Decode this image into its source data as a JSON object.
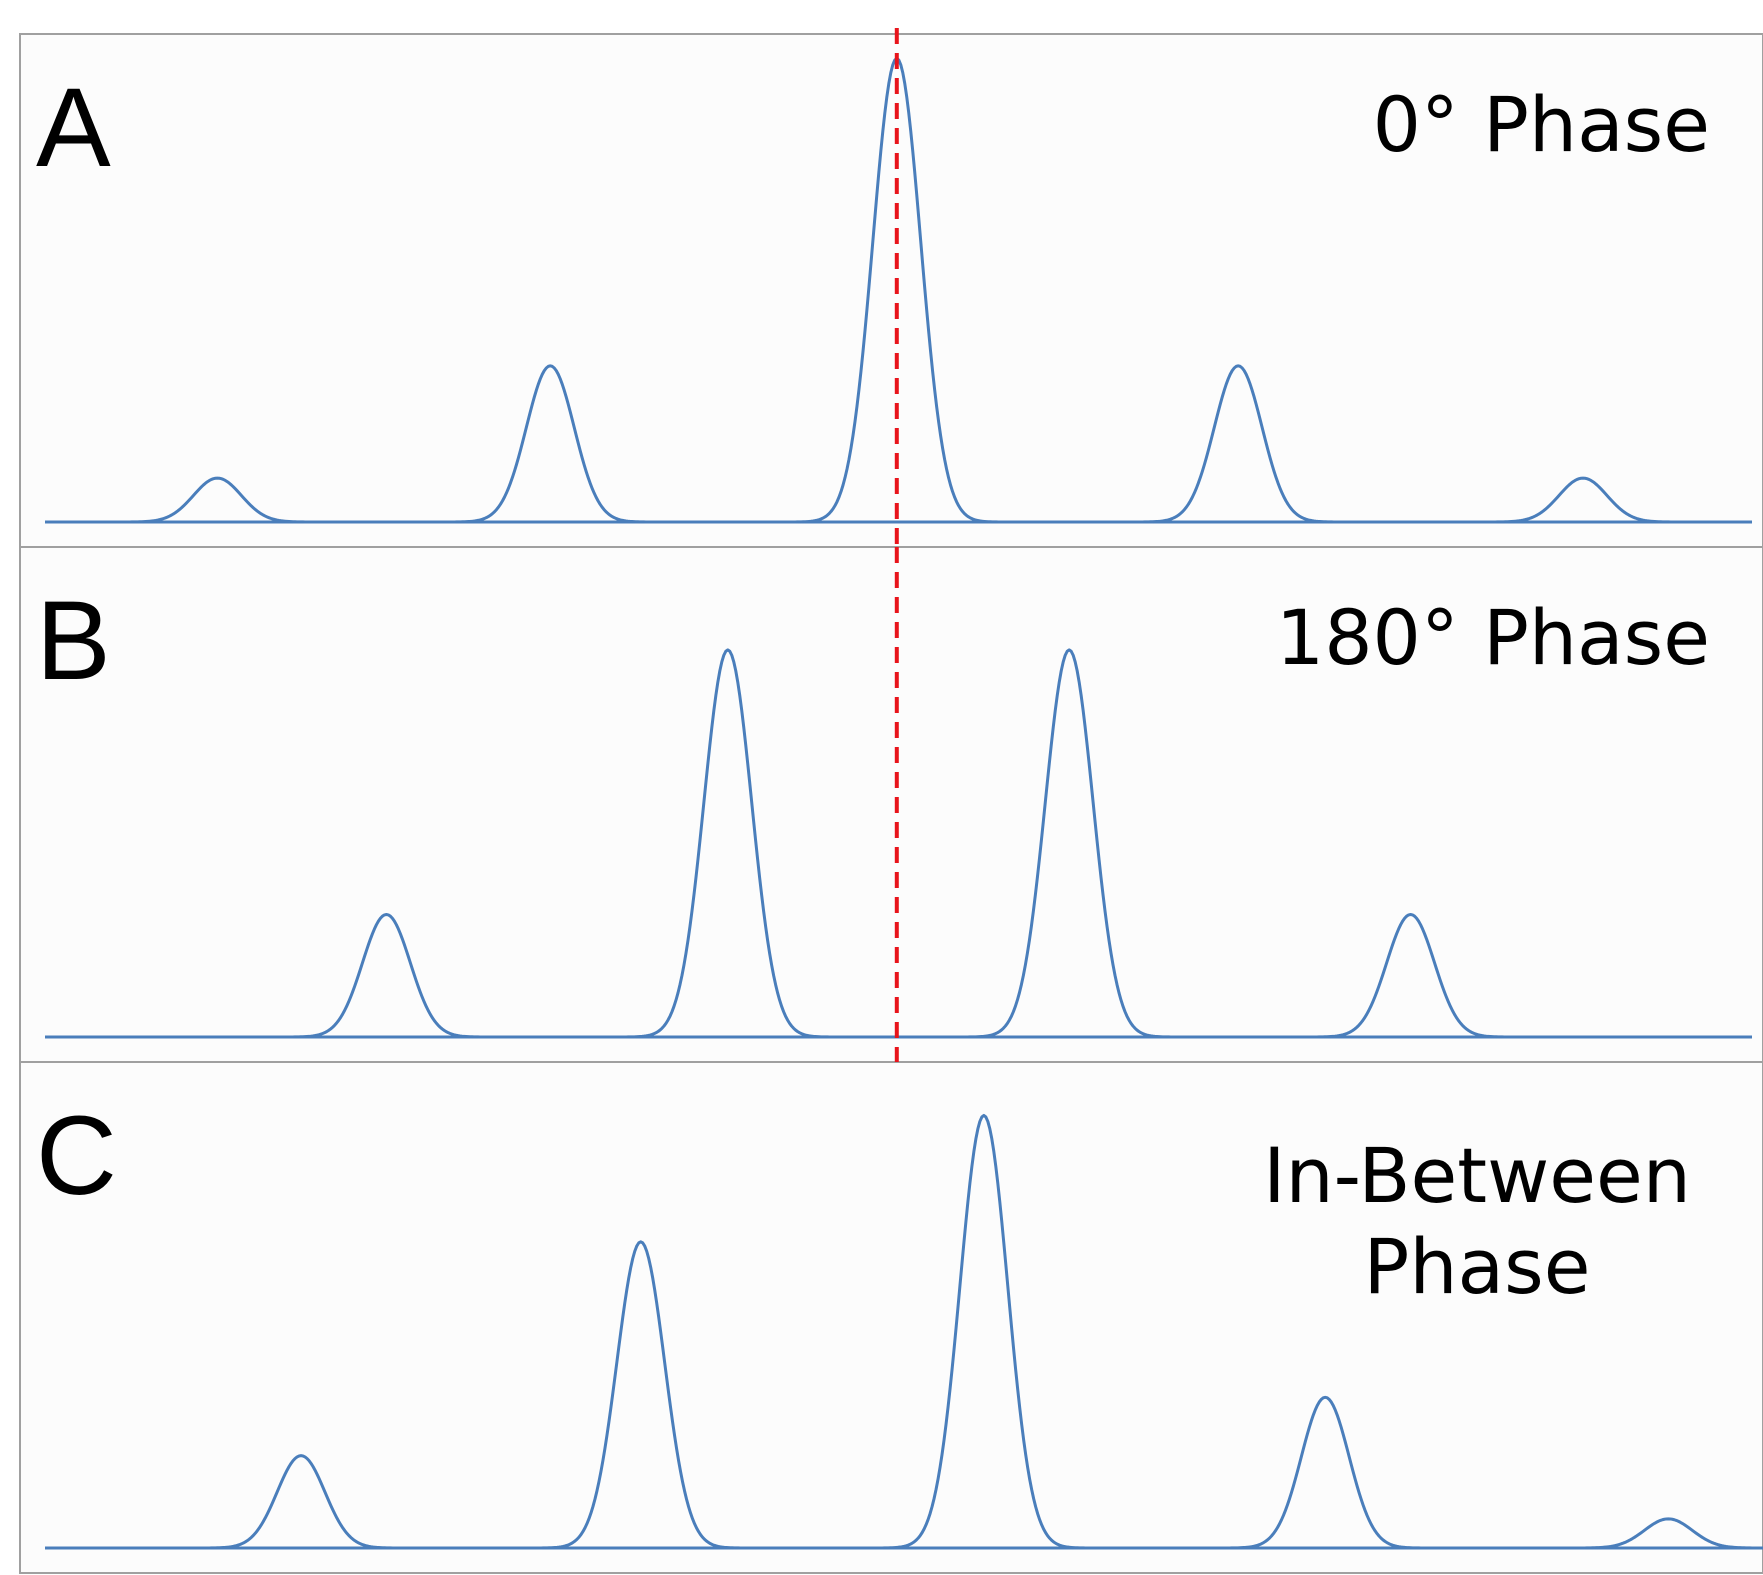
{
  "chart_data": [
    {
      "type": "peaks",
      "label": "A",
      "title": "0° Phase",
      "color": "#4a7ebb",
      "x": [
        10.1,
        29.6,
        49.9,
        69.9,
        90.1
      ],
      "values": [
        9,
        32,
        95,
        32,
        9
      ],
      "xlim": [
        0,
        100
      ],
      "ylim": [
        0,
        100
      ],
      "vline": 49.9,
      "vline_color": "#e8141b"
    },
    {
      "type": "peaks",
      "label": "B",
      "title": "180° Phase",
      "color": "#4a7ebb",
      "x": [
        20.0,
        40.0,
        60.0,
        80.0
      ],
      "values": [
        25,
        79,
        79,
        25
      ],
      "xlim": [
        0,
        100
      ],
      "ylim": [
        0,
        100
      ],
      "vline": 49.9,
      "vline_color": "#e8141b"
    },
    {
      "type": "peaks",
      "label": "C",
      "title": "In-Between Phase",
      "color": "#4a7ebb",
      "x": [
        15.0,
        34.9,
        55.0,
        75.0,
        95.1
      ],
      "values": [
        19,
        63,
        89,
        31,
        6
      ],
      "xlim": [
        0,
        100
      ],
      "ylim": [
        0,
        100
      ]
    }
  ]
}
